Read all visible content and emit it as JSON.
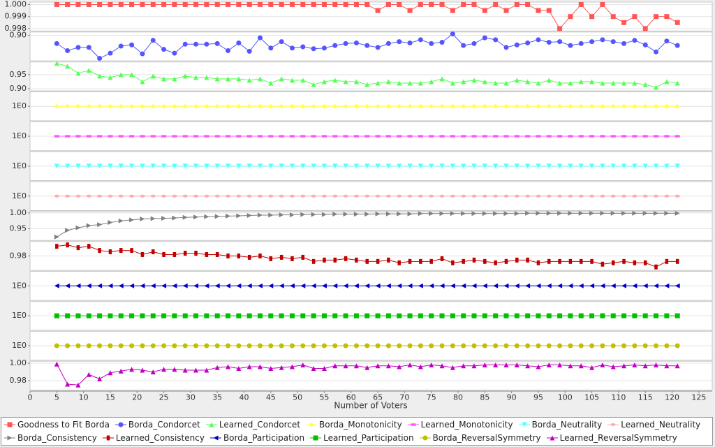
{
  "chart_data": {
    "type": "line",
    "xlabel": "Number of Voters",
    "grid": true,
    "legend": "bottom",
    "x": [
      5,
      7,
      9,
      11,
      13,
      15,
      17,
      19,
      21,
      23,
      25,
      27,
      29,
      31,
      33,
      35,
      37,
      39,
      41,
      43,
      45,
      47,
      49,
      51,
      53,
      55,
      57,
      59,
      61,
      63,
      65,
      67,
      69,
      71,
      73,
      75,
      77,
      79,
      81,
      83,
      85,
      87,
      89,
      91,
      93,
      95,
      97,
      99,
      101,
      103,
      105,
      107,
      109,
      111,
      113,
      115,
      117,
      119,
      121
    ],
    "xlim": [
      0,
      127.5
    ],
    "xticks": [
      0,
      5,
      10,
      15,
      20,
      25,
      30,
      35,
      40,
      45,
      50,
      55,
      60,
      65,
      70,
      75,
      80,
      85,
      90,
      95,
      100,
      105,
      110,
      115,
      120,
      125
    ],
    "series": [
      {
        "name": "Goodness to Fit Borda",
        "color": "#ff5555",
        "marker": "square",
        "ylim": [
          0.9978,
          1.0002
        ],
        "yticks": [
          0.998,
          0.999,
          {
            "value": 1,
            "label": "1.000"
          }
        ],
        "values": [
          1,
          1,
          1,
          1,
          1,
          1,
          1,
          1,
          1,
          1,
          1,
          1,
          1,
          1,
          1,
          1,
          1,
          1,
          1,
          1,
          1,
          1,
          1,
          1,
          1,
          1,
          1,
          1,
          1,
          1,
          0.9995,
          1,
          1,
          0.9995,
          1,
          1,
          1,
          0.9995,
          1,
          1,
          0.9995,
          1,
          0.9995,
          1,
          1,
          0.9995,
          0.9995,
          0.998,
          0.999,
          1,
          0.999,
          1,
          0.999,
          0.9985,
          0.999,
          0.998,
          0.999,
          0.999,
          0.9985
        ]
      },
      {
        "name": "Borda_Condorcet",
        "color": "#5555ff",
        "marker": "circle",
        "ylim": [
          0.86,
          0.905
        ],
        "yticks": [
          {
            "value": 0.9,
            "label": "0.90"
          }
        ],
        "values": [
          0.887,
          0.876,
          0.881,
          0.881,
          0.864,
          0.872,
          0.883,
          0.885,
          0.871,
          0.892,
          0.878,
          0.872,
          0.886,
          0.886,
          0.886,
          0.887,
          0.876,
          0.888,
          0.875,
          0.896,
          0.88,
          0.89,
          0.88,
          0.882,
          0.879,
          0.88,
          0.884,
          0.887,
          0.888,
          0.884,
          0.881,
          0.887,
          0.89,
          0.888,
          0.893,
          0.887,
          0.889,
          0.902,
          0.884,
          0.887,
          0.896,
          0.893,
          0.881,
          0.885,
          0.888,
          0.893,
          0.889,
          0.89,
          0.884,
          0.887,
          0.89,
          0.893,
          0.89,
          0.887,
          0.892,
          0.885,
          0.874,
          0.891,
          0.884
        ]
      },
      {
        "name": "Learned_Condorcet",
        "color": "#55ff55",
        "marker": "triangle-up",
        "ylim": [
          0.8925,
          0.995
        ],
        "yticks": [
          {
            "value": 0.9,
            "label": "0.90"
          },
          0.95
        ],
        "values": [
          0.99,
          0.98,
          0.955,
          0.965,
          0.945,
          0.94,
          0.95,
          0.95,
          0.925,
          0.945,
          0.935,
          0.935,
          0.945,
          0.94,
          0.94,
          0.935,
          0.935,
          0.935,
          0.93,
          0.935,
          0.92,
          0.935,
          0.93,
          0.93,
          0.915,
          0.925,
          0.93,
          0.925,
          0.925,
          0.915,
          0.92,
          0.925,
          0.92,
          0.92,
          0.92,
          0.925,
          0.935,
          0.92,
          0.925,
          0.93,
          0.925,
          0.92,
          0.92,
          0.93,
          0.925,
          0.92,
          0.93,
          0.92,
          0.92,
          0.925,
          0.925,
          0.92,
          0.92,
          0.92,
          0.92,
          0.915,
          0.905,
          0.925,
          0.92
        ]
      },
      {
        "name": "Borda_Monotonicity",
        "color": "#ffff55",
        "marker": "diamond",
        "ylim": [
          0.5,
          1.5
        ],
        "yticks": [
          {
            "value": 1,
            "label": "1E0"
          }
        ],
        "values": [
          1,
          1,
          1,
          1,
          1,
          1,
          1,
          1,
          1,
          1,
          1,
          1,
          1,
          1,
          1,
          1,
          1,
          1,
          1,
          1,
          1,
          1,
          1,
          1,
          1,
          1,
          1,
          1,
          1,
          1,
          1,
          1,
          1,
          1,
          1,
          1,
          1,
          1,
          1,
          1,
          1,
          1,
          1,
          1,
          1,
          1,
          1,
          1,
          1,
          1,
          1,
          1,
          1,
          1,
          1,
          1,
          1,
          1,
          1
        ]
      },
      {
        "name": "Learned_Monotonicity",
        "color": "#ff55ff",
        "marker": "hrect",
        "ylim": [
          0.5,
          1.5
        ],
        "yticks": [
          {
            "value": 1,
            "label": "1E0"
          }
        ],
        "values": [
          1,
          1,
          1,
          1,
          1,
          1,
          1,
          1,
          1,
          1,
          1,
          1,
          1,
          1,
          1,
          1,
          1,
          1,
          1,
          1,
          1,
          1,
          1,
          1,
          1,
          1,
          1,
          1,
          1,
          1,
          1,
          1,
          1,
          1,
          1,
          1,
          1,
          1,
          1,
          1,
          1,
          1,
          1,
          1,
          1,
          1,
          1,
          1,
          1,
          1,
          1,
          1,
          1,
          1,
          1,
          1,
          1,
          1,
          1
        ]
      },
      {
        "name": "Borda_Neutrality",
        "color": "#55ffff",
        "marker": "triangle-down",
        "ylim": [
          0.5,
          1.5
        ],
        "yticks": [
          {
            "value": 1,
            "label": "1E0"
          }
        ],
        "values": [
          1,
          1,
          1,
          1,
          1,
          1,
          1,
          1,
          1,
          1,
          1,
          1,
          1,
          1,
          1,
          1,
          1,
          1,
          1,
          1,
          1,
          1,
          1,
          1,
          1,
          1,
          1,
          1,
          1,
          1,
          1,
          1,
          1,
          1,
          1,
          1,
          1,
          1,
          1,
          1,
          1,
          1,
          1,
          1,
          1,
          1,
          1,
          1,
          1,
          1,
          1,
          1,
          1,
          1,
          1,
          1,
          1,
          1,
          1
        ]
      },
      {
        "name": "Learned_Neutrality",
        "color": "#ffafaf",
        "marker": "ellipse",
        "ylim": [
          0.5,
          1.5
        ],
        "yticks": [
          {
            "value": 1,
            "label": "1E0"
          }
        ],
        "values": [
          1,
          1,
          1,
          1,
          1,
          1,
          1,
          1,
          1,
          1,
          1,
          1,
          1,
          1,
          1,
          1,
          1,
          1,
          1,
          1,
          1,
          1,
          1,
          1,
          1,
          1,
          1,
          1,
          1,
          1,
          1,
          1,
          1,
          1,
          1,
          1,
          1,
          1,
          1,
          1,
          1,
          1,
          1,
          1,
          1,
          1,
          1,
          1,
          1,
          1,
          1,
          1,
          1,
          1,
          1,
          1,
          1,
          1,
          1
        ]
      },
      {
        "name": "Borda_Consistency",
        "color": "#808080",
        "marker": "triangle-right",
        "ylim": [
          0.913,
          1.0043
        ],
        "yticks": [
          0.95,
          {
            "value": 1,
            "label": "1.00"
          }
        ],
        "values": [
          0.924,
          0.945,
          0.953,
          0.96,
          0.963,
          0.97,
          0.975,
          0.978,
          0.981,
          0.982,
          0.983,
          0.984,
          0.986,
          0.987,
          0.988,
          0.989,
          0.99,
          0.991,
          0.992,
          0.993,
          0.993,
          0.994,
          0.994,
          0.995,
          0.995,
          0.995,
          0.996,
          0.996,
          0.996,
          0.996,
          0.997,
          0.997,
          0.997,
          0.997,
          0.998,
          0.998,
          0.998,
          0.998,
          0.998,
          0.998,
          0.998,
          0.998,
          0.998,
          0.998,
          0.999,
          0.999,
          0.999,
          0.999,
          0.999,
          0.999,
          0.999,
          0.999,
          0.999,
          0.999,
          0.999,
          0.999,
          0.999,
          0.999,
          0.999
        ]
      },
      {
        "name": "Learned_Consistency",
        "color": "#c00000",
        "marker": "vrect",
        "ylim": [
          0.9695,
          0.9905
        ],
        "yticks": [
          0.98
        ],
        "values": [
          0.987,
          0.988,
          0.986,
          0.987,
          0.984,
          0.983,
          0.984,
          0.984,
          0.981,
          0.983,
          0.981,
          0.981,
          0.982,
          0.982,
          0.981,
          0.981,
          0.98,
          0.98,
          0.979,
          0.98,
          0.978,
          0.979,
          0.978,
          0.979,
          0.976,
          0.977,
          0.977,
          0.978,
          0.977,
          0.976,
          0.976,
          0.977,
          0.975,
          0.976,
          0.976,
          0.976,
          0.978,
          0.975,
          0.976,
          0.977,
          0.976,
          0.975,
          0.976,
          0.977,
          0.977,
          0.975,
          0.976,
          0.976,
          0.976,
          0.976,
          0.976,
          0.974,
          0.975,
          0.976,
          0.975,
          0.975,
          0.972,
          0.976,
          0.976
        ]
      },
      {
        "name": "Borda_Participation",
        "color": "#0000c0",
        "marker": "triangle-left",
        "ylim": [
          0.5,
          1.5
        ],
        "yticks": [
          {
            "value": 1,
            "label": "1E0"
          }
        ],
        "values": [
          1,
          1,
          1,
          1,
          1,
          1,
          1,
          1,
          1,
          1,
          1,
          1,
          1,
          1,
          1,
          1,
          1,
          1,
          1,
          1,
          1,
          1,
          1,
          1,
          1,
          1,
          1,
          1,
          1,
          1,
          1,
          1,
          1,
          1,
          1,
          1,
          1,
          1,
          1,
          1,
          1,
          1,
          1,
          1,
          1,
          1,
          1,
          1,
          1,
          1,
          1,
          1,
          1,
          1,
          1,
          1,
          1,
          1,
          1
        ]
      },
      {
        "name": "Learned_Participation",
        "color": "#00c000",
        "marker": "square",
        "ylim": [
          0.5,
          1.5
        ],
        "yticks": [
          {
            "value": 1,
            "label": "1E0"
          }
        ],
        "values": [
          1,
          1,
          1,
          1,
          1,
          1,
          1,
          1,
          1,
          1,
          1,
          1,
          1,
          1,
          1,
          1,
          1,
          1,
          1,
          1,
          1,
          1,
          1,
          1,
          1,
          1,
          1,
          1,
          1,
          1,
          1,
          1,
          1,
          1,
          1,
          1,
          1,
          1,
          1,
          1,
          1,
          1,
          1,
          1,
          1,
          1,
          1,
          1,
          1,
          1,
          1,
          1,
          1,
          1,
          1,
          1,
          1,
          1,
          1
        ]
      },
      {
        "name": "Borda_ReversalSymmetry",
        "color": "#c0c000",
        "marker": "circle",
        "ylim": [
          0.5,
          1.5
        ],
        "yticks": [
          {
            "value": 1,
            "label": "1E0"
          }
        ],
        "values": [
          1,
          1,
          1,
          1,
          1,
          1,
          1,
          1,
          1,
          1,
          1,
          1,
          1,
          1,
          1,
          1,
          1,
          1,
          1,
          1,
          1,
          1,
          1,
          1,
          1,
          1,
          1,
          1,
          1,
          1,
          1,
          1,
          1,
          1,
          1,
          1,
          1,
          1,
          1,
          1,
          1,
          1,
          1,
          1,
          1,
          1,
          1,
          1,
          1,
          1,
          1,
          1,
          1,
          1,
          1,
          1,
          1,
          1,
          1
        ]
      },
      {
        "name": "Learned_ReversalSymmetry",
        "color": "#c000c0",
        "marker": "triangle-up",
        "ylim": [
          0.9692,
          1.0023
        ],
        "yticks": [
          0.98,
          {
            "value": 1,
            "label": "1.00"
          }
        ],
        "values": [
          0.999,
          0.976,
          0.975,
          0.987,
          0.982,
          0.989,
          0.991,
          0.993,
          0.992,
          0.99,
          0.993,
          0.993,
          0.992,
          0.992,
          0.992,
          0.995,
          0.996,
          0.994,
          0.996,
          0.996,
          0.994,
          0.995,
          0.996,
          0.998,
          0.994,
          0.994,
          0.997,
          0.997,
          0.997,
          0.995,
          0.997,
          0.997,
          0.996,
          0.998,
          0.996,
          0.998,
          0.997,
          0.995,
          0.997,
          0.997,
          0.998,
          0.998,
          0.998,
          0.998,
          0.997,
          0.996,
          0.998,
          0.998,
          0.997,
          0.997,
          0.995,
          0.998,
          0.996,
          0.997,
          0.998,
          0.997,
          0.998,
          0.997,
          0.997
        ]
      }
    ]
  }
}
